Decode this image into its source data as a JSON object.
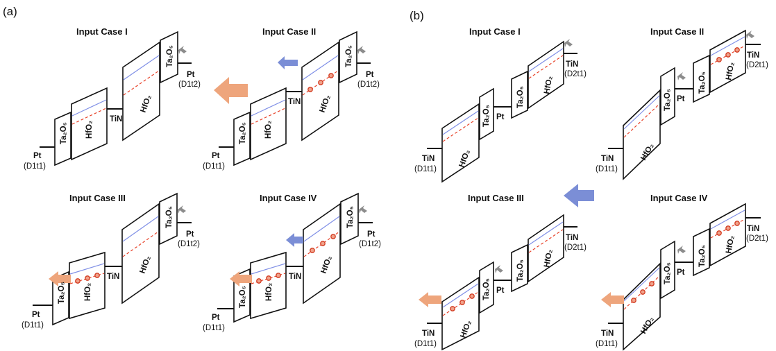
{
  "panels": [
    {
      "label": "(a)",
      "cases": [
        {
          "title": "Input Case I",
          "left_electrode": "Pt",
          "left_device": "(D1t1)",
          "middle_electrode": "TiN",
          "right_electrode": "Pt",
          "right_device": "(D1t2)",
          "layer_ta": "Ta₂O₅",
          "layer_hf": "HfO₂"
        },
        {
          "title": "Input Case II",
          "left_electrode": "Pt",
          "left_device": "(D1t1)",
          "middle_electrode": "TiN",
          "right_electrode": "Pt",
          "right_device": "(D1t2)",
          "layer_ta": "Ta₂O₅",
          "layer_hf": "HfO₂"
        },
        {
          "title": "Input Case III",
          "left_electrode": "Pt",
          "left_device": "(D1t1)",
          "middle_electrode": "TiN",
          "right_electrode": "Pt",
          "right_device": "(D1t2)",
          "layer_ta": "Ta₂O₅",
          "layer_hf": "HfO₂"
        },
        {
          "title": "Input Case IV",
          "left_electrode": "Pt",
          "left_device": "(D1t1)",
          "middle_electrode": "TiN",
          "right_electrode": "Pt",
          "right_device": "(D1t2)",
          "layer_ta": "Ta₂O₅",
          "layer_hf": "HfO₂"
        }
      ]
    },
    {
      "label": "(b)",
      "cases": [
        {
          "title": "Input Case I",
          "left_electrode": "TiN",
          "left_device": "(D1t1)",
          "middle_electrode": "Pt",
          "right_electrode": "TiN",
          "right_device": "(D2t1)",
          "layer_ta": "Ta₂O₅",
          "layer_hf": "HfO₂"
        },
        {
          "title": "Input Case II",
          "left_electrode": "TiN",
          "left_device": "(D1t1)",
          "middle_electrode": "Pt",
          "right_electrode": "TiN",
          "right_device": "(D2t1)",
          "layer_ta": "Ta₂O₅",
          "layer_hf": "HfO₂"
        },
        {
          "title": "Input Case III",
          "left_electrode": "TiN",
          "left_device": "(D1t1)",
          "middle_electrode": "Pt",
          "right_electrode": "TiN",
          "right_device": "(D2t1)",
          "layer_ta": "Ta₂O₅",
          "layer_hf": "HfO₂"
        },
        {
          "title": "Input Case IV",
          "left_electrode": "TiN",
          "left_device": "(D1t1)",
          "middle_electrode": "Pt",
          "right_electrode": "TiN",
          "right_device": "(D2t1)",
          "layer_ta": "Ta₂O₅",
          "layer_hf": "HfO₂"
        }
      ]
    }
  ],
  "colors": {
    "blue_line": "#7f8fe6",
    "red_dashed_line": "#e8432a",
    "orange_arrow": "#eea57c",
    "blue_arrow": "#7b8ed6",
    "gray_arrow": "#8c8c8c"
  }
}
